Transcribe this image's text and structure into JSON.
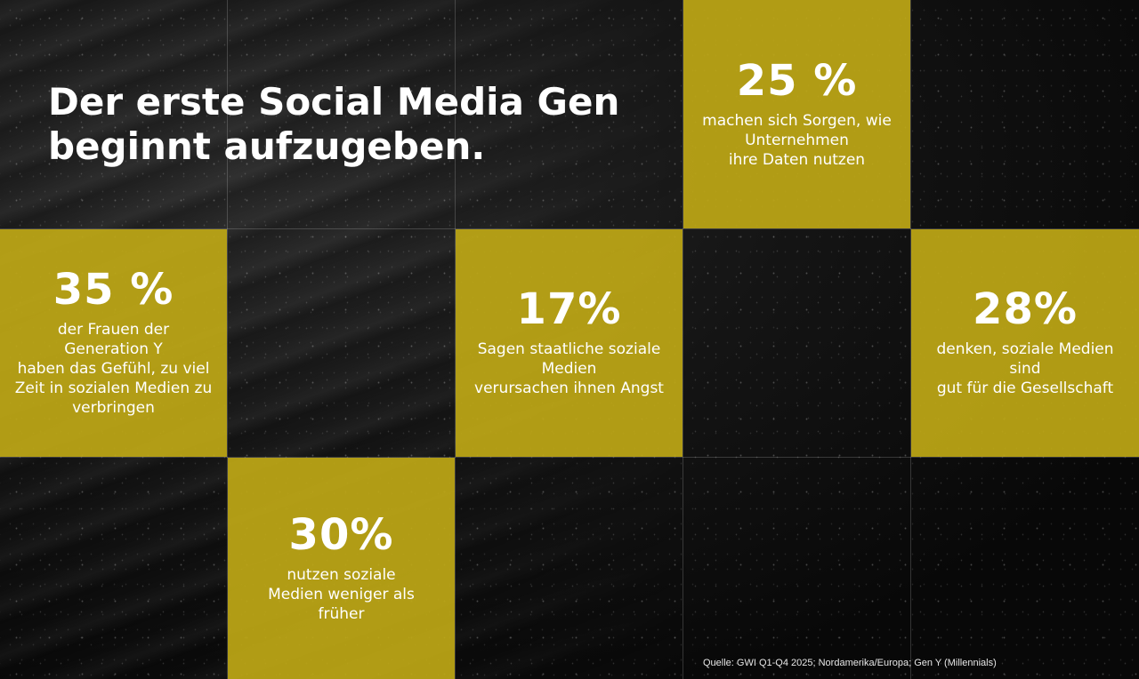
{
  "headline": "Der erste Social Media Gen\nbeginnt aufzugeben.",
  "colors": {
    "tile": "#bfa816",
    "text": "#ffffff",
    "background": "#0b0b0b"
  },
  "stats": {
    "data_worry": {
      "value": "25 %",
      "text": "machen sich Sorgen, wie\nUnternehmen\nihre Daten nutzen"
    },
    "women_time": {
      "value": "35 %",
      "text": "der Frauen der\nGeneration Y\nhaben das Gefühl, zu viel\nZeit in sozialen Medien zu\nverbringen"
    },
    "anxiety": {
      "value": "17%",
      "text": "Sagen staatliche soziale\nMedien\nverursachen ihnen Angst"
    },
    "good_for_society": {
      "value": "28%",
      "text": "denken, soziale Medien\nsind\ngut für die Gesellschaft"
    },
    "use_less": {
      "value": "30%",
      "text": "nutzen soziale\nMedien weniger als\nfrüher"
    }
  },
  "source": "Quelle: GWI Q1-Q4 2025; Nordamerika/Europa; Gen Y (Millennials)"
}
